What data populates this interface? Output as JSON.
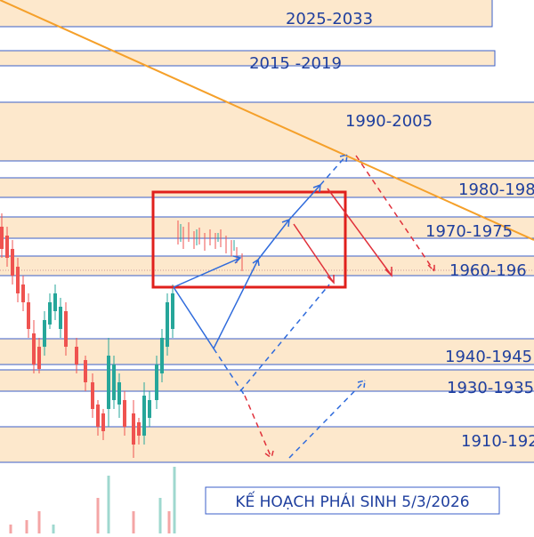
{
  "zones": [
    {
      "label": "2025-2033"
    },
    {
      "label": "2015 -2019"
    },
    {
      "label": "1990-2005"
    },
    {
      "label": "1980-198"
    },
    {
      "label": "1970-1975"
    },
    {
      "label": "1960-196"
    },
    {
      "label": "1940-1945"
    },
    {
      "label": "1930-1935"
    },
    {
      "label": "1910-192"
    }
  ],
  "caption": "KẾ HOẠCH PHÁI SINH 5/3/2026"
}
